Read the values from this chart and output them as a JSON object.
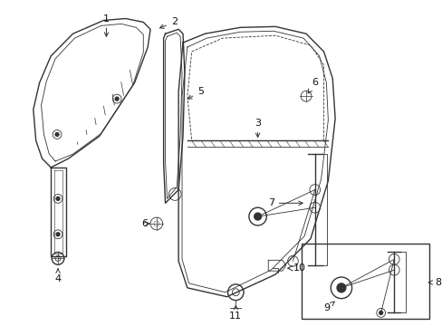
{
  "bg_color": "#ffffff",
  "line_color": "#333333",
  "label_color": "#111111",
  "fig_w": 4.89,
  "fig_h": 3.6,
  "dpi": 100
}
